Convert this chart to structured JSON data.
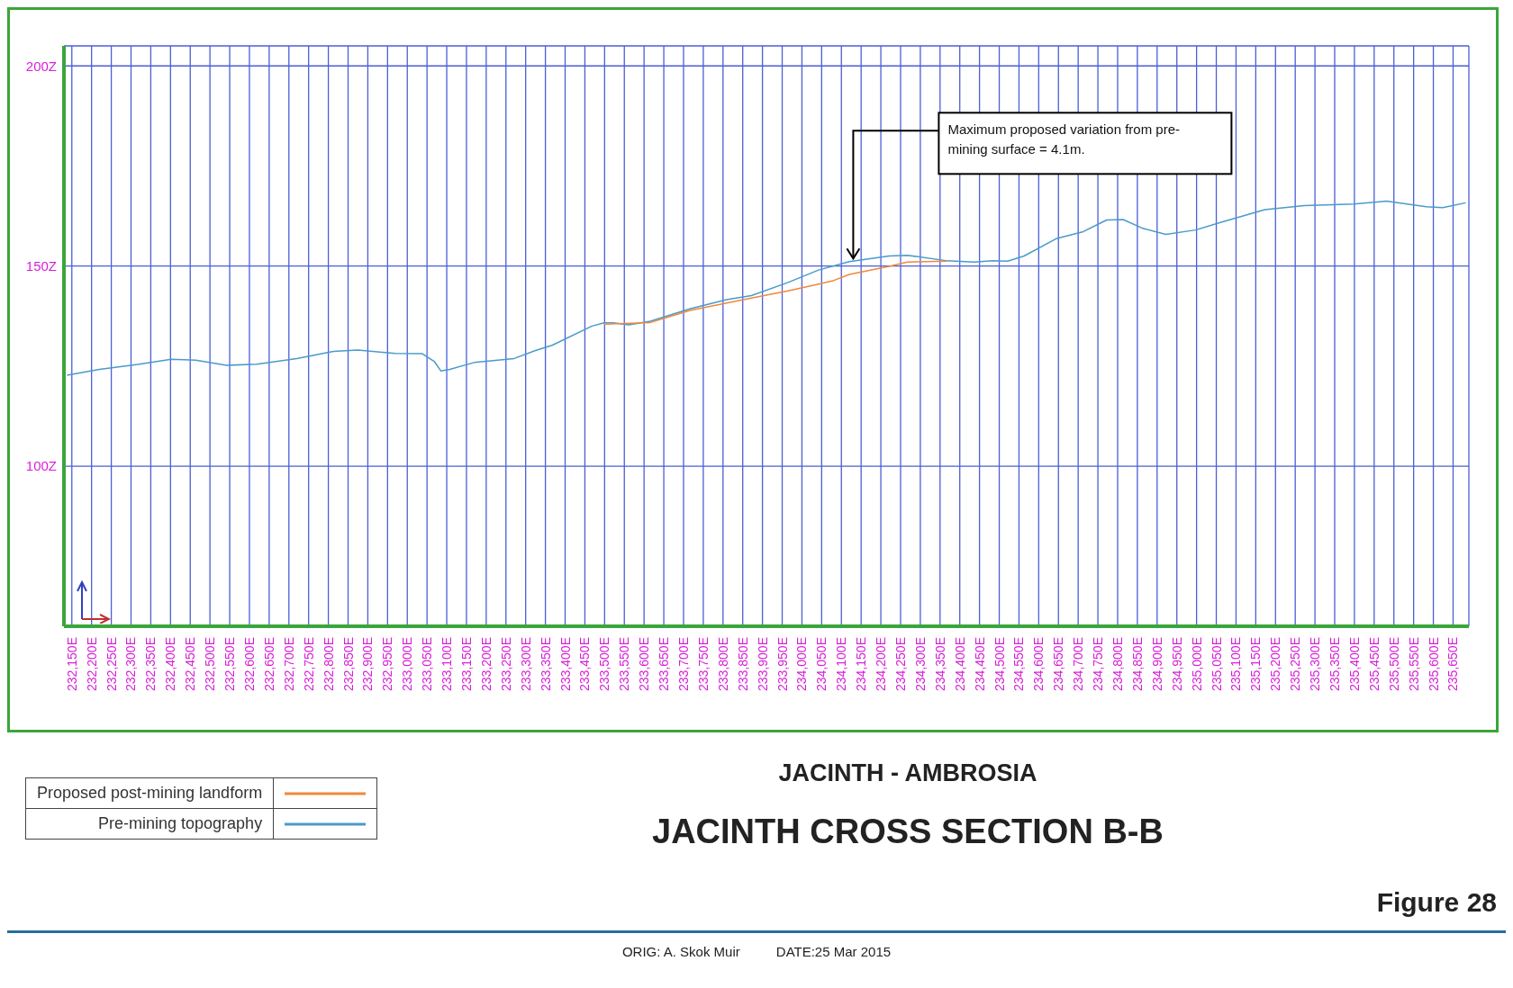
{
  "chart_data": {
    "type": "line",
    "title": "JACINTH CROSS SECTION B-B",
    "subtitle": "JACINTH - AMBROSIA",
    "annotations": [
      {
        "text": "Maximum proposed variation from pre-mining surface = 4.1m.",
        "x": 234130,
        "y": 151.2
      },
      "ORIG: A. Skok Muir",
      "DATE:25 Mar 2015",
      "Figure 28"
    ],
    "series": [
      {
        "name": "Proposed post-mining landform",
        "color": "#f0883a",
        "x": [
          233499,
          233616,
          233716,
          233872,
          233965,
          234042,
          234081,
          234120,
          234221,
          234267,
          234368
        ],
        "values": [
          135.5,
          135.9,
          138.9,
          142.0,
          143.8,
          145.5,
          146.4,
          147.9,
          149.9,
          151.0,
          151.2
        ]
      },
      {
        "name": "Pre-mining topography",
        "color": "#4a9acb",
        "x": [
          232138,
          232220,
          232317,
          232402,
          232464,
          232542,
          232619,
          232720,
          232813,
          232875,
          232930,
          232969,
          233038,
          233069,
          233085,
          233108,
          233170,
          233271,
          233325,
          233367,
          233468,
          233499,
          233522,
          233561,
          233616,
          233716,
          233809,
          233872,
          233965,
          234042,
          234120,
          234221,
          234267,
          234368,
          234437,
          234483,
          234521,
          234563,
          234646,
          234713,
          234772,
          234814,
          234864,
          234922,
          234997,
          235064,
          235173,
          235273,
          235398,
          235481,
          235582,
          235624,
          235682
        ],
        "values": [
          122.7,
          124.2,
          125.4,
          126.7,
          126.5,
          125.2,
          125.5,
          126.9,
          128.7,
          129.0,
          128.5,
          128.2,
          128.1,
          126.1,
          123.8,
          124.2,
          125.9,
          126.9,
          128.9,
          130.2,
          135.0,
          135.8,
          135.8,
          135.3,
          136.2,
          139.3,
          141.6,
          142.6,
          145.9,
          149.0,
          151.1,
          152.5,
          152.7,
          151.3,
          151.0,
          151.3,
          151.2,
          152.5,
          156.9,
          158.6,
          161.5,
          161.6,
          159.4,
          157.9,
          159.0,
          161.0,
          164.1,
          165.1,
          165.5,
          166.2,
          164.8,
          164.6,
          165.8
        ]
      }
    ],
    "xlim": [
      232130,
      235690
    ],
    "xticks": [
      {
        "value": 232150,
        "label": "232,150E"
      },
      {
        "value": 232200,
        "label": "232,200E"
      },
      {
        "value": 232250,
        "label": "232,250E"
      },
      {
        "value": 232300,
        "label": "232,300E"
      },
      {
        "value": 232350,
        "label": "232,350E"
      },
      {
        "value": 232400,
        "label": "232,400E"
      },
      {
        "value": 232450,
        "label": "232,450E"
      },
      {
        "value": 232500,
        "label": "232,500E"
      },
      {
        "value": 232550,
        "label": "232,550E"
      },
      {
        "value": 232600,
        "label": "232,600E"
      },
      {
        "value": 232650,
        "label": "232,650E"
      },
      {
        "value": 232700,
        "label": "232,700E"
      },
      {
        "value": 232750,
        "label": "232,750E"
      },
      {
        "value": 232800,
        "label": "232,800E"
      },
      {
        "value": 232850,
        "label": "232,850E"
      },
      {
        "value": 232900,
        "label": "232,900E"
      },
      {
        "value": 232950,
        "label": "232,950E"
      },
      {
        "value": 233000,
        "label": "233,000E"
      },
      {
        "value": 233050,
        "label": "233,050E"
      },
      {
        "value": 233100,
        "label": "233,100E"
      },
      {
        "value": 233150,
        "label": "233,150E"
      },
      {
        "value": 233200,
        "label": "233,200E"
      },
      {
        "value": 233250,
        "label": "233,250E"
      },
      {
        "value": 233300,
        "label": "233,300E"
      },
      {
        "value": 233350,
        "label": "233,350E"
      },
      {
        "value": 233400,
        "label": "233,400E"
      },
      {
        "value": 233450,
        "label": "233,450E"
      },
      {
        "value": 233500,
        "label": "233,500E"
      },
      {
        "value": 233550,
        "label": "233,550E"
      },
      {
        "value": 233600,
        "label": "233,600E"
      },
      {
        "value": 233650,
        "label": "233,650E"
      },
      {
        "value": 233700,
        "label": "233,700E"
      },
      {
        "value": 233750,
        "label": "233,750E"
      },
      {
        "value": 233800,
        "label": "233,800E"
      },
      {
        "value": 233850,
        "label": "233,850E"
      },
      {
        "value": 233900,
        "label": "233,900E"
      },
      {
        "value": 233950,
        "label": "233,950E"
      },
      {
        "value": 234000,
        "label": "234,000E"
      },
      {
        "value": 234050,
        "label": "234,050E"
      },
      {
        "value": 234100,
        "label": "234,100E"
      },
      {
        "value": 234150,
        "label": "234,150E"
      },
      {
        "value": 234200,
        "label": "234,200E"
      },
      {
        "value": 234250,
        "label": "234,250E"
      },
      {
        "value": 234300,
        "label": "234,300E"
      },
      {
        "value": 234350,
        "label": "234,350E"
      },
      {
        "value": 234400,
        "label": "234,400E"
      },
      {
        "value": 234450,
        "label": "234,450E"
      },
      {
        "value": 234500,
        "label": "234,500E"
      },
      {
        "value": 234550,
        "label": "234,550E"
      },
      {
        "value": 234600,
        "label": "234,600E"
      },
      {
        "value": 234650,
        "label": "234,650E"
      },
      {
        "value": 234700,
        "label": "234,700E"
      },
      {
        "value": 234750,
        "label": "234,750E"
      },
      {
        "value": 234800,
        "label": "234,800E"
      },
      {
        "value": 234850,
        "label": "234,850E"
      },
      {
        "value": 234900,
        "label": "234,900E"
      },
      {
        "value": 234950,
        "label": "234,950E"
      },
      {
        "value": 235000,
        "label": "235,000E"
      },
      {
        "value": 235050,
        "label": "235,050E"
      },
      {
        "value": 235100,
        "label": "235,100E"
      },
      {
        "value": 235150,
        "label": "235,150E"
      },
      {
        "value": 235200,
        "label": "235,200E"
      },
      {
        "value": 235250,
        "label": "235,250E"
      },
      {
        "value": 235300,
        "label": "235,300E"
      },
      {
        "value": 235350,
        "label": "235,350E"
      },
      {
        "value": 235400,
        "label": "235,400E"
      },
      {
        "value": 235450,
        "label": "235,450E"
      },
      {
        "value": 235500,
        "label": "235,500E"
      },
      {
        "value": 235550,
        "label": "235,550E"
      },
      {
        "value": 235600,
        "label": "235,600E"
      },
      {
        "value": 235650,
        "label": "235,650E"
      }
    ],
    "ylim": [
      60,
      205
    ],
    "yticks": [
      {
        "value": 100,
        "label": "100Z"
      },
      {
        "value": 150,
        "label": "150Z"
      },
      {
        "value": 200,
        "label": "200Z"
      }
    ],
    "grid": true,
    "legend": "bottom left"
  }
}
